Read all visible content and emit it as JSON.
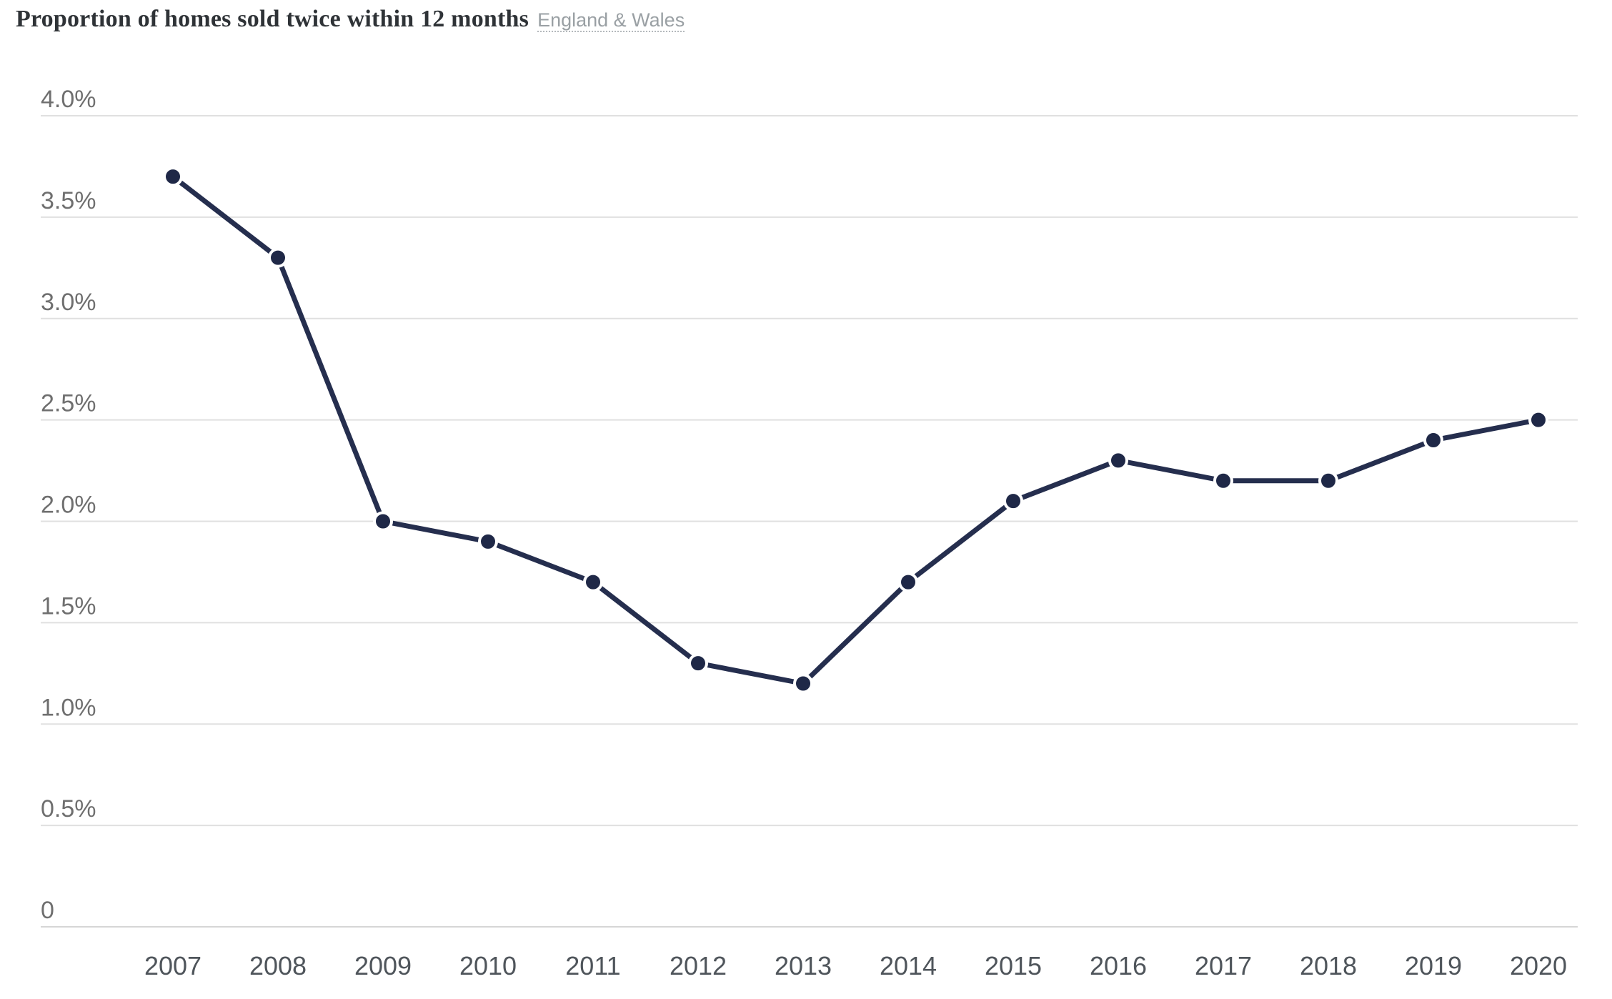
{
  "header": {
    "title": "Proportion of homes sold twice within 12 months",
    "region_label": "England & Wales"
  },
  "chart_data": {
    "type": "line",
    "title": "Proportion of homes sold twice within 12 months",
    "subtitle": "England & Wales",
    "categories": [
      "2007",
      "2008",
      "2009",
      "2010",
      "2011",
      "2012",
      "2013",
      "2014",
      "2015",
      "2016",
      "2017",
      "2018",
      "2019",
      "2020"
    ],
    "series": [
      {
        "name": "Proportion of homes sold twice within 12 months",
        "values": [
          3.7,
          3.3,
          2.0,
          1.9,
          1.7,
          1.3,
          1.2,
          1.7,
          2.1,
          2.3,
          2.2,
          2.2,
          2.4,
          2.5
        ]
      }
    ],
    "unit": "%",
    "ylim": [
      0,
      4.0
    ],
    "yticks": [
      {
        "value": 4.0,
        "label": "4.0%"
      },
      {
        "value": 3.5,
        "label": "3.5%"
      },
      {
        "value": 3.0,
        "label": "3.0%"
      },
      {
        "value": 2.5,
        "label": "2.5%"
      },
      {
        "value": 2.0,
        "label": "2.0%"
      },
      {
        "value": 1.5,
        "label": "1.5%"
      },
      {
        "value": 1.0,
        "label": "1.0%"
      },
      {
        "value": 0.5,
        "label": "0.5%"
      },
      {
        "value": 0,
        "label": "0"
      }
    ],
    "grid": "horizontal",
    "legend": "none",
    "colors": {
      "line": "#252e4e",
      "point": "#1f2847",
      "grid": "#e0e0e0",
      "y_label": "#6f6f6f",
      "x_label": "#4f555b",
      "title": "#2f3337",
      "subtitle": "#9aa0a4"
    }
  }
}
